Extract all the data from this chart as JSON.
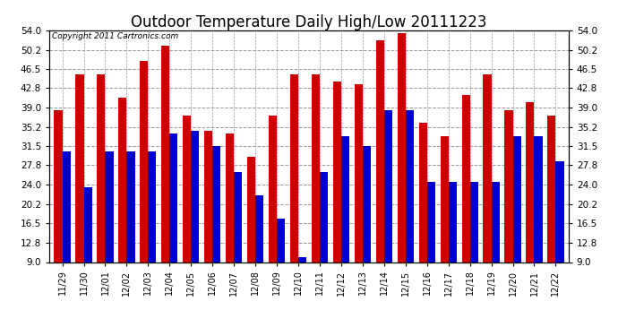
{
  "title": "Outdoor Temperature Daily High/Low 20111223",
  "copyright": "Copyright 2011 Cartronics.com",
  "labels": [
    "11/29",
    "11/30",
    "12/01",
    "12/02",
    "12/03",
    "12/04",
    "12/05",
    "12/06",
    "12/07",
    "12/08",
    "12/09",
    "12/10",
    "12/11",
    "12/12",
    "12/13",
    "12/14",
    "12/15",
    "12/16",
    "12/17",
    "12/18",
    "12/19",
    "12/20",
    "12/21",
    "12/22"
  ],
  "highs": [
    38.5,
    45.5,
    45.5,
    41.0,
    48.0,
    51.0,
    37.5,
    34.5,
    34.0,
    29.5,
    37.5,
    45.5,
    45.5,
    44.0,
    43.5,
    52.0,
    53.5,
    36.0,
    33.5,
    41.5,
    45.5,
    38.5,
    40.0,
    37.5
  ],
  "lows": [
    30.5,
    23.5,
    30.5,
    30.5,
    30.5,
    34.0,
    34.5,
    31.5,
    26.5,
    22.0,
    17.5,
    10.0,
    26.5,
    33.5,
    31.5,
    38.5,
    38.5,
    24.5,
    24.5,
    24.5,
    24.5,
    33.5,
    33.5,
    28.5
  ],
  "high_color": "#cc0000",
  "low_color": "#0000cc",
  "bg_color": "#ffffff",
  "grid_color": "#999999",
  "yticks": [
    9.0,
    12.8,
    16.5,
    20.2,
    24.0,
    27.8,
    31.5,
    35.2,
    39.0,
    42.8,
    46.5,
    50.2,
    54.0
  ],
  "ylim": [
    9.0,
    54.0
  ],
  "ymin": 9.0,
  "bar_width": 0.38,
  "title_fontsize": 12,
  "copyright_fontsize": 6.5,
  "tick_fontsize": 7,
  "ytick_fontsize": 7.5
}
